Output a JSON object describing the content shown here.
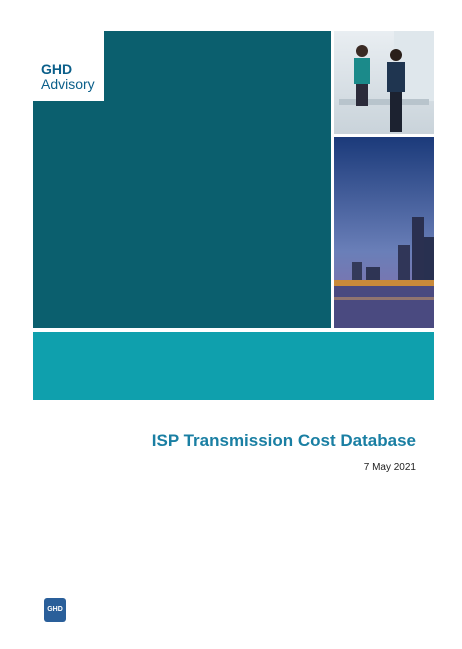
{
  "brand": {
    "name": "GHD",
    "division": "Advisory"
  },
  "document": {
    "title": "ISP Transmission Cost Database",
    "date": "7 May 2021"
  },
  "footer": {
    "logo": "GHD"
  }
}
